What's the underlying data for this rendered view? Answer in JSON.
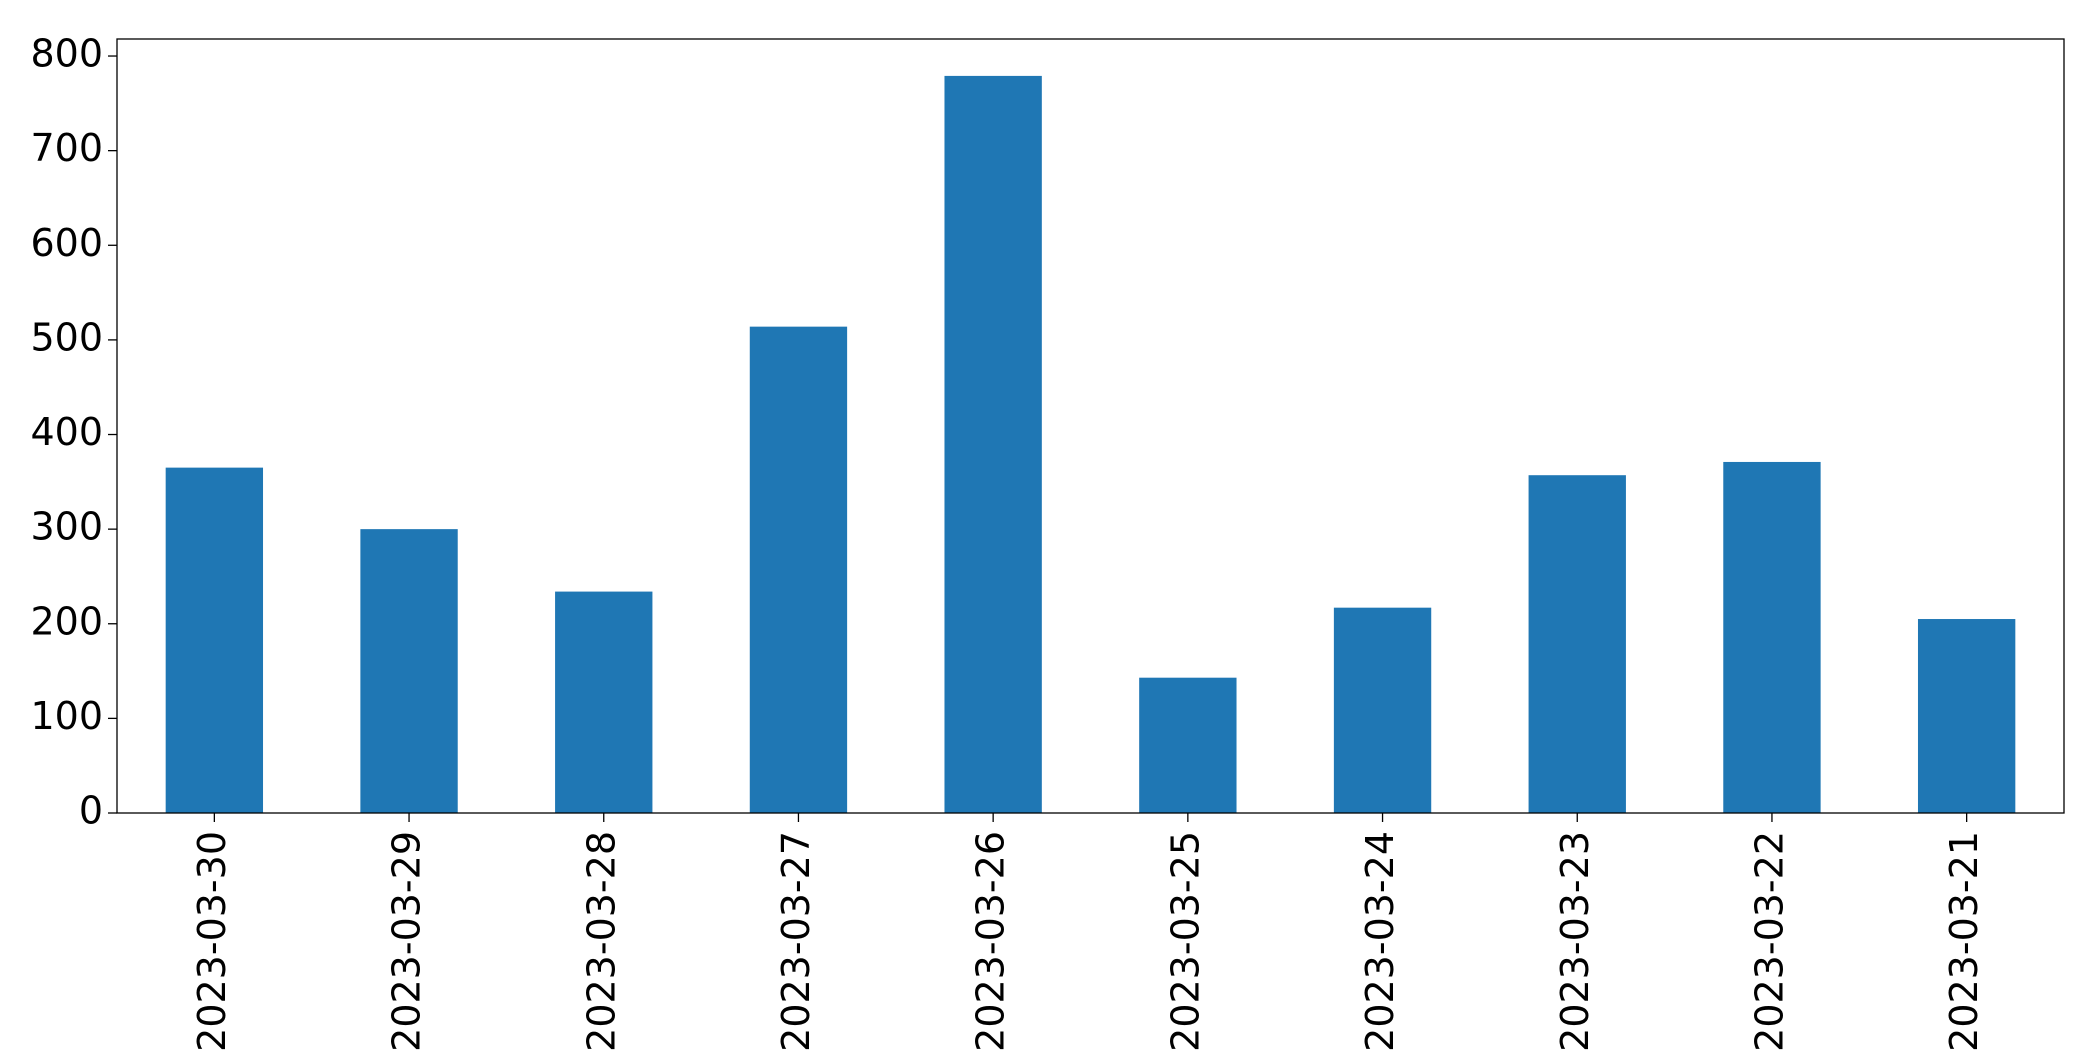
{
  "chart_data": {
    "type": "bar",
    "categories": [
      "2023-03-30",
      "2023-03-29",
      "2023-03-28",
      "2023-03-27",
      "2023-03-26",
      "2023-03-25",
      "2023-03-24",
      "2023-03-23",
      "2023-03-22",
      "2023-03-21"
    ],
    "values": [
      365,
      300,
      234,
      514,
      779,
      143,
      217,
      357,
      371,
      205
    ],
    "color": "#1f77b4",
    "ylim": [
      0,
      818
    ],
    "yticks": [
      0,
      100,
      200,
      300,
      400,
      500,
      600,
      700,
      800
    ],
    "grid": false
  }
}
